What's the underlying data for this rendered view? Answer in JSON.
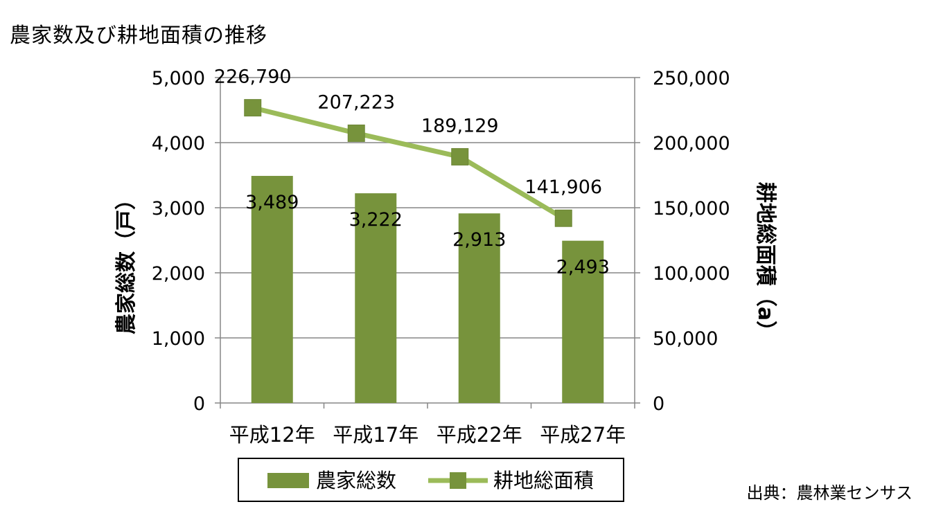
{
  "title": "農家数及び耕地面積の推移",
  "source": "出典：農林業センサス",
  "chart_data": {
    "type": "bar",
    "categories": [
      "平成12年",
      "平成17年",
      "平成22年",
      "平成27年"
    ],
    "series": [
      {
        "name": "農家総数",
        "type": "bar",
        "axis": "left",
        "values": [
          3489,
          3222,
          2913,
          2493
        ],
        "labels": [
          "3,489",
          "3,222",
          "2,913",
          "2,493"
        ],
        "color": "#77933c"
      },
      {
        "name": "耕地総面積",
        "type": "line",
        "axis": "right",
        "values": [
          226790,
          207223,
          189129,
          141906
        ],
        "labels": [
          "226,790",
          "207,223",
          "189,129",
          "141,906"
        ],
        "color": "#9bbb59",
        "marker_color": "#77933c"
      }
    ],
    "y_left": {
      "label": "農家総数（戸）",
      "ylim": [
        0,
        5000
      ],
      "ticks": [
        0,
        1000,
        2000,
        3000,
        4000,
        5000
      ],
      "tick_labels": [
        "0",
        "1,000",
        "2,000",
        "3,000",
        "4,000",
        "5,000"
      ]
    },
    "y_right": {
      "label": "耕地総面積（a）",
      "ylim": [
        0,
        250000
      ],
      "ticks": [
        0,
        50000,
        100000,
        150000,
        200000,
        250000
      ],
      "tick_labels": [
        "0",
        "50,000",
        "100,000",
        "150,000",
        "200,000",
        "250,000"
      ]
    },
    "grid": true,
    "legend": "bottom"
  }
}
